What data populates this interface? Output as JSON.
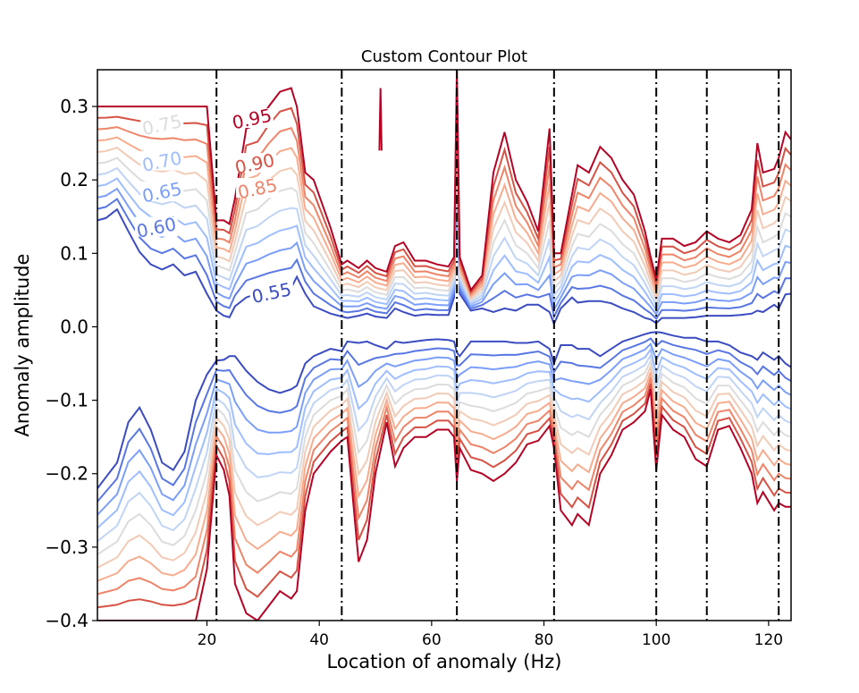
{
  "chart_data": {
    "type": "contour",
    "title": "Custom Contour Plot",
    "xlabel": "Location of anomaly (Hz)",
    "ylabel": "Anomaly amplitude",
    "xlim": [
      0.5,
      124
    ],
    "ylim": [
      -0.4,
      0.35
    ],
    "x_ticks": [
      20,
      40,
      60,
      80,
      100,
      120
    ],
    "y_ticks": [
      0.3,
      0.2,
      0.1,
      0.0,
      -0.1,
      -0.2,
      -0.3,
      -0.4
    ],
    "x_tick_labels": [
      "20",
      "40",
      "60",
      "80",
      "100",
      "120"
    ],
    "y_tick_labels": [
      "0.3",
      "0.2",
      "0.1",
      "0.0",
      "−0.1",
      "−0.2",
      "−0.3",
      "−0.4"
    ],
    "grid": false,
    "colormap": "coolwarm",
    "levels": [
      {
        "level": 0.55,
        "color": "#3b4cc0"
      },
      {
        "level": 0.6,
        "color": "#5977e3"
      },
      {
        "level": 0.65,
        "color": "#7b9ff9"
      },
      {
        "level": 0.7,
        "color": "#9ebeff"
      },
      {
        "level": 0.75,
        "color": "#c0d4f5"
      },
      {
        "level": 0.8,
        "color": "#dddcdc"
      },
      {
        "level": 0.85,
        "color": "#f2cbb7"
      },
      {
        "level": 0.9,
        "color": "#f7ac8e"
      },
      {
        "level": 0.95,
        "color": "#ee8468"
      },
      {
        "level": 1.0,
        "color": "#d65244"
      },
      {
        "level": 1.05,
        "color": "#b40426"
      }
    ],
    "contour_labels": [
      {
        "text": "0.95",
        "x": 28.0,
        "y": 0.283,
        "color": "#b40426"
      },
      {
        "text": "0.90",
        "x": 28.5,
        "y": 0.222,
        "color": "#d65244"
      },
      {
        "text": "0.85",
        "x": 29.0,
        "y": 0.188,
        "color": "#ee8468"
      },
      {
        "text": "0.75",
        "x": 12.0,
        "y": 0.275,
        "color": "#dddcdc"
      },
      {
        "text": "0.70",
        "x": 12.0,
        "y": 0.225,
        "color": "#9ebeff"
      },
      {
        "text": "0.65",
        "x": 12.0,
        "y": 0.183,
        "color": "#7b9ff9"
      },
      {
        "text": "0.60",
        "x": 11.0,
        "y": 0.135,
        "color": "#5977e3"
      },
      {
        "text": "0.55",
        "x": 31.5,
        "y": 0.046,
        "color": "#3b4cc0"
      }
    ],
    "vlines": [
      21.7,
      44.0,
      64.5,
      81.8,
      100.0,
      109.0,
      121.8
    ],
    "upper_band": {
      "x": [
        0.5,
        2,
        4,
        6,
        8,
        10,
        12,
        14,
        16,
        18,
        20,
        21.7,
        23,
        24,
        25,
        27,
        29,
        31,
        33,
        35,
        36,
        37.5,
        39,
        42,
        44,
        45,
        47,
        48.5,
        50,
        52,
        53.5,
        55,
        57,
        59,
        61,
        63,
        64,
        64.5,
        65,
        67,
        69,
        71,
        73,
        75,
        77,
        79,
        81,
        81.8,
        83,
        85,
        86,
        88,
        90,
        92,
        94,
        96,
        98,
        99,
        100,
        101,
        103,
        105,
        107,
        109,
        111,
        113,
        115,
        117,
        118,
        119,
        121,
        121.8,
        123,
        124
      ],
      "inner": [
        0.145,
        0.148,
        0.16,
        0.13,
        0.102,
        0.085,
        0.078,
        0.085,
        0.07,
        0.075,
        0.045,
        0.022,
        0.015,
        0.013,
        0.028,
        0.04,
        0.045,
        0.048,
        0.05,
        0.053,
        0.068,
        0.045,
        0.028,
        0.018,
        0.014,
        0.012,
        0.015,
        0.018,
        0.014,
        0.012,
        0.025,
        0.02,
        0.015,
        0.017,
        0.016,
        0.016,
        0.04,
        0.2,
        0.045,
        0.022,
        0.025,
        0.02,
        0.025,
        0.022,
        0.03,
        0.03,
        0.02,
        0.004,
        0.025,
        0.04,
        0.033,
        0.035,
        0.035,
        0.032,
        0.025,
        0.02,
        0.012,
        0.01,
        0.005,
        0.012,
        0.012,
        0.012,
        0.013,
        0.015,
        0.015,
        0.015,
        0.016,
        0.018,
        0.022,
        0.02,
        0.03,
        0.025,
        0.044,
        0.045
      ],
      "outer": [
        0.3,
        0.3,
        0.3,
        0.3,
        0.3,
        0.3,
        0.3,
        0.3,
        0.3,
        0.3,
        0.3,
        0.145,
        0.145,
        0.14,
        0.175,
        0.27,
        0.275,
        0.3,
        0.32,
        0.325,
        0.3,
        0.21,
        0.2,
        0.135,
        0.085,
        0.09,
        0.08,
        0.09,
        0.08,
        0.075,
        0.11,
        0.115,
        0.09,
        0.09,
        0.085,
        0.082,
        0.095,
        0.35,
        0.095,
        0.05,
        0.07,
        0.21,
        0.265,
        0.2,
        0.17,
        0.13,
        0.27,
        0.1,
        0.1,
        0.18,
        0.22,
        0.21,
        0.245,
        0.23,
        0.2,
        0.18,
        0.13,
        0.095,
        0.065,
        0.12,
        0.12,
        0.11,
        0.115,
        0.13,
        0.12,
        0.115,
        0.125,
        0.16,
        0.25,
        0.21,
        0.215,
        0.23,
        0.265,
        0.255
      ]
    },
    "lower_band": {
      "x": [
        0.5,
        2,
        4,
        6,
        8,
        10,
        12,
        14,
        16,
        18,
        20,
        21.7,
        23,
        24,
        25,
        27,
        29,
        31,
        33,
        35,
        36,
        37.5,
        39,
        42,
        44,
        45,
        47,
        48.5,
        50,
        52,
        53.5,
        55,
        57,
        59,
        61,
        63,
        64,
        64.5,
        65,
        67,
        69,
        71,
        73,
        75,
        77,
        79,
        81,
        81.8,
        83,
        85,
        86,
        88,
        90,
        92,
        94,
        96,
        98,
        99,
        100,
        101,
        103,
        105,
        107,
        109,
        111,
        113,
        115,
        117,
        118,
        119,
        121,
        121.8,
        123,
        124
      ],
      "inner": [
        -0.22,
        -0.205,
        -0.185,
        -0.13,
        -0.11,
        -0.14,
        -0.185,
        -0.195,
        -0.17,
        -0.1,
        -0.065,
        -0.046,
        -0.045,
        -0.04,
        -0.04,
        -0.06,
        -0.075,
        -0.085,
        -0.09,
        -0.085,
        -0.08,
        -0.05,
        -0.04,
        -0.03,
        -0.033,
        -0.02,
        -0.022,
        -0.02,
        -0.025,
        -0.03,
        -0.02,
        -0.022,
        -0.02,
        -0.018,
        -0.017,
        -0.018,
        -0.02,
        -0.035,
        -0.04,
        -0.02,
        -0.02,
        -0.02,
        -0.02,
        -0.022,
        -0.022,
        -0.02,
        -0.03,
        -0.05,
        -0.025,
        -0.025,
        -0.03,
        -0.03,
        -0.04,
        -0.03,
        -0.02,
        -0.015,
        -0.01,
        -0.008,
        -0.007,
        -0.008,
        -0.012,
        -0.015,
        -0.015,
        -0.02,
        -0.02,
        -0.025,
        -0.035,
        -0.04,
        -0.045,
        -0.035,
        -0.045,
        -0.04,
        -0.05,
        -0.055
      ],
      "outer": [
        -0.4,
        -0.4,
        -0.4,
        -0.4,
        -0.4,
        -0.4,
        -0.4,
        -0.4,
        -0.4,
        -0.4,
        -0.33,
        -0.175,
        -0.195,
        -0.23,
        -0.35,
        -0.39,
        -0.4,
        -0.38,
        -0.36,
        -0.37,
        -0.36,
        -0.25,
        -0.2,
        -0.17,
        -0.155,
        -0.15,
        -0.32,
        -0.29,
        -0.2,
        -0.13,
        -0.19,
        -0.165,
        -0.15,
        -0.15,
        -0.14,
        -0.14,
        -0.15,
        -0.21,
        -0.165,
        -0.195,
        -0.2,
        -0.21,
        -0.2,
        -0.185,
        -0.16,
        -0.155,
        -0.135,
        -0.165,
        -0.25,
        -0.27,
        -0.255,
        -0.27,
        -0.2,
        -0.175,
        -0.14,
        -0.13,
        -0.115,
        -0.085,
        -0.195,
        -0.12,
        -0.14,
        -0.15,
        -0.18,
        -0.19,
        -0.14,
        -0.135,
        -0.165,
        -0.2,
        -0.24,
        -0.225,
        -0.25,
        -0.24,
        -0.245,
        -0.245
      ]
    },
    "spike": {
      "x": 50.9,
      "y_min": 0.24,
      "y_max": 0.325,
      "color": "#b40426"
    }
  }
}
